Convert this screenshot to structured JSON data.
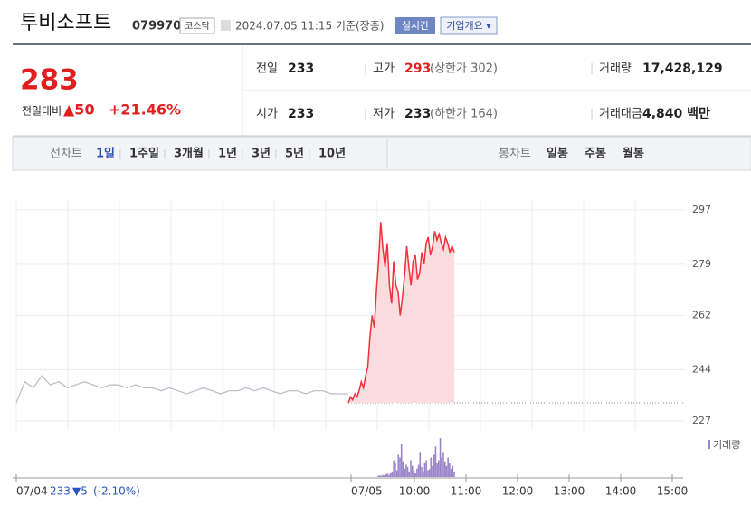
{
  "header": {
    "title": "투비소프트",
    "code": "079970",
    "market": "코스닥",
    "timestamp": "2024.07.05 11:15 기준(장중)",
    "realtime": "실시간",
    "company_info": "기업개요 ▾"
  },
  "quote": {
    "price": "283",
    "change_label": "전일대비",
    "change": "▲50",
    "change_pct": "+21.46%"
  },
  "summary": {
    "rows": [
      [
        [
          "전일",
          "233"
        ],
        [
          "고가",
          "293",
          "(상한가 302)"
        ],
        [
          "거래량",
          "17,428,129"
        ]
      ],
      [
        [
          "시가",
          "233"
        ],
        [
          "저가",
          "233",
          "(하한가 164)"
        ],
        [
          "거래대금",
          "4,840 백만"
        ]
      ]
    ]
  },
  "tabs": {
    "line_label": "선차트",
    "line_periods": [
      "1일",
      "1주일",
      "3개월",
      "1년",
      "3년",
      "5년",
      "10년"
    ],
    "candle_label": "봉차트",
    "candle_periods": [
      "일봉",
      "주봉",
      "월봉"
    ]
  },
  "chart_data": {
    "type": "line",
    "ylim": [
      227,
      297
    ],
    "yticks": [
      227,
      244,
      262,
      279,
      297
    ],
    "prev_close": 233,
    "xticks": [
      "07/04",
      "07/05",
      "10:00",
      "11:00",
      "12:00",
      "13:00",
      "14:00",
      "15:00"
    ],
    "series": [
      {
        "name": "07/04",
        "color": "#b8bcc6",
        "values": [
          233,
          240,
          238,
          242,
          239,
          240,
          238,
          239,
          240,
          239,
          238,
          239,
          239,
          238,
          239,
          238,
          238,
          237,
          238,
          237,
          236,
          237,
          238,
          237,
          236,
          237,
          237,
          238,
          237,
          238,
          237,
          236,
          237,
          237,
          236,
          237,
          237,
          236,
          236,
          236
        ]
      },
      {
        "name": "07/05",
        "color": "#f0303a",
        "values": [
          233,
          235,
          234,
          236,
          235,
          237,
          240,
          238,
          242,
          245,
          255,
          262,
          258,
          270,
          280,
          293,
          284,
          278,
          286,
          272,
          266,
          280,
          272,
          270,
          262,
          268,
          275,
          285,
          278,
          272,
          280,
          282,
          274,
          276,
          283,
          279,
          286,
          288,
          282,
          285,
          290,
          287,
          289,
          286,
          284,
          288,
          286,
          283,
          285,
          283
        ]
      }
    ],
    "volume": {
      "name": "거래량",
      "color": "#9a85c9",
      "values": [
        2,
        3,
        2,
        4,
        3,
        5,
        6,
        4,
        8,
        10,
        30,
        25,
        12,
        40,
        35,
        60,
        28,
        15,
        22,
        18,
        10,
        30,
        20,
        12,
        8,
        15,
        22,
        45,
        18,
        10,
        25,
        30,
        12,
        14,
        35,
        20,
        40,
        55,
        25,
        30,
        70,
        35,
        45,
        28,
        20,
        35,
        25,
        15,
        20,
        10
      ]
    },
    "footer": {
      "date": "07/04",
      "close": "233",
      "change": "▼5",
      "change_pct": "(-2.10%)"
    }
  }
}
